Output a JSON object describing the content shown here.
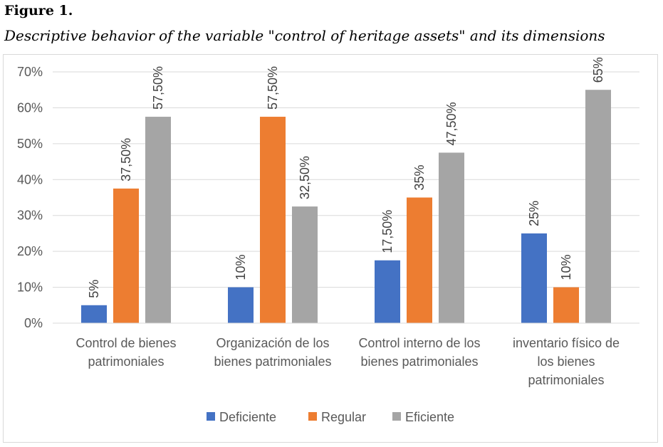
{
  "figure": {
    "label": "Figure 1.",
    "caption": "Descriptive behavior of the variable \"control of heritage assets\" and its dimensions"
  },
  "chart_data": {
    "type": "bar",
    "categories": [
      [
        "Control de bienes",
        "patrimoniales"
      ],
      [
        "Organización de los",
        "bienes patrimoniales"
      ],
      [
        "Control interno de los",
        "bienes patrimoniales"
      ],
      [
        "inventario físico de",
        "los bienes",
        "patrimoniales"
      ]
    ],
    "series": [
      {
        "name": "Deficiente",
        "values": [
          5,
          10,
          17.5,
          25
        ],
        "labels": [
          "5%",
          "10%",
          "17,50%",
          "25%"
        ],
        "color": "#4472c4"
      },
      {
        "name": "Regular",
        "values": [
          37.5,
          57.5,
          35,
          10
        ],
        "labels": [
          "37,50%",
          "57,50%",
          "35%",
          "10%"
        ],
        "color": "#ed7d31"
      },
      {
        "name": "Eficiente",
        "values": [
          57.5,
          32.5,
          47.5,
          65
        ],
        "labels": [
          "57,50%",
          "32,50%",
          "47,50%",
          "65%"
        ],
        "color": "#a5a5a5"
      }
    ],
    "yticks": [
      "0%",
      "10%",
      "20%",
      "30%",
      "40%",
      "50%",
      "60%",
      "70%"
    ],
    "ylim": [
      0,
      70
    ],
    "grid": true,
    "legend_position": "bottom"
  }
}
